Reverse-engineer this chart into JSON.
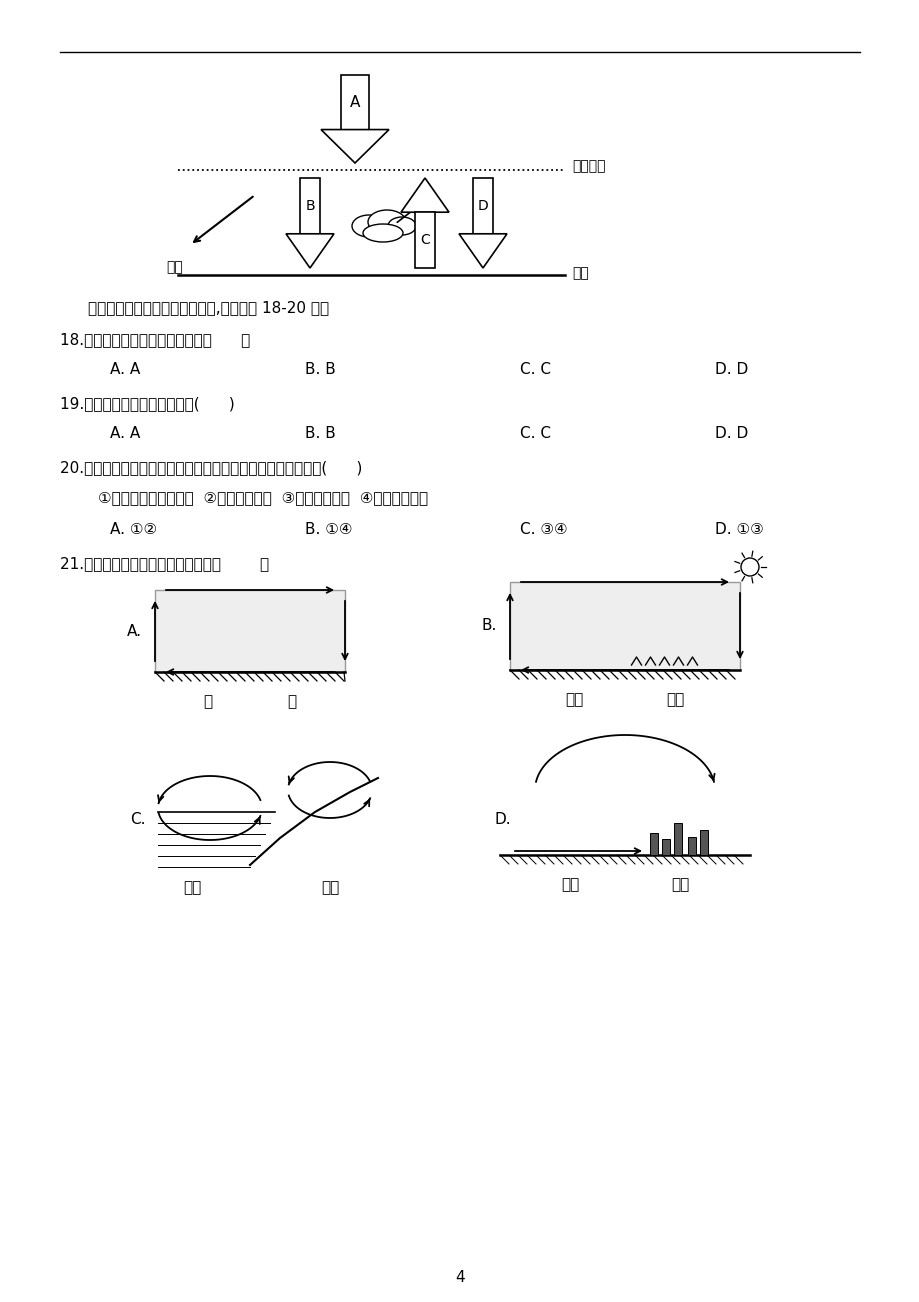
{
  "bg_color": "#ffffff",
  "text_color": "#000000",
  "page_number": "4",
  "caption1": "读「地球大气受热过程示意图」,完成下列 18-20 题。",
  "q18": "18.图中字母表示大气逆辐射的是（      ）",
  "q18_opts": [
    "A. A",
    "B. B",
    "C. C",
    "D. D"
  ],
  "q19": "19.近地面大气的热量主要来自(      )",
  "q19_opts": [
    "A. A",
    "B. B",
    "C. C",
    "D. D"
  ],
  "q20": "20.我国东部地区不少城市出现了「热岛效应」，其主要原因有(      )",
  "q20_sub": "①城市建筑物高大密集  ②绻地面积增大  ③能源消耗减小  ④城市人口剧增",
  "q20_opts": [
    "A. ①②",
    "B. ①④",
    "C. ③④",
    "D. ①③"
  ],
  "q21": "21.下列图中热力环流的正确画法是（        ）",
  "q21_A_labels": [
    "冷",
    "热"
  ],
  "q21_B_labels": [
    "裸地",
    "草地"
  ],
  "q21_C_labels": [
    "海洋",
    "陆地"
  ],
  "q21_D_labels": [
    "郊区",
    "市区"
  ],
  "atm_label": "大气上界",
  "ground_label": "地面",
  "absorb_label": "吸收"
}
